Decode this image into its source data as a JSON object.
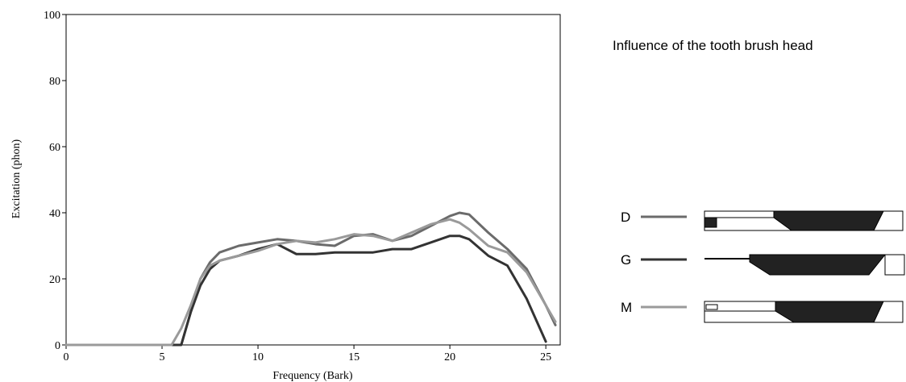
{
  "chart_data": {
    "type": "line",
    "title": "Influence of the tooth brush head",
    "x_label": "Frequency (Bark)",
    "y_label": "Excitation (phon)",
    "x": [
      0,
      5.5,
      6,
      6.5,
      7,
      7.5,
      8,
      9,
      10,
      11,
      12,
      13,
      14,
      15,
      16,
      17,
      18,
      19,
      20,
      20.5,
      21,
      22,
      23,
      24,
      25,
      25.5
    ],
    "series": [
      {
        "name": "D",
        "color": "#6b6b6b",
        "values": [
          0,
          0,
          0,
          10,
          20,
          25,
          28,
          30,
          31,
          32,
          31.5,
          30.5,
          30,
          33,
          33.5,
          31.5,
          33,
          36,
          39,
          40,
          39.5,
          34,
          29,
          23,
          12,
          6
        ]
      },
      {
        "name": "G",
        "color": "#333333",
        "values": [
          0,
          0,
          0,
          10,
          18,
          23,
          25.5,
          27,
          29,
          30.5,
          27.5,
          27.5,
          28,
          28,
          28,
          29,
          29,
          31,
          33,
          33,
          32,
          27,
          24,
          14,
          1,
          null
        ]
      },
      {
        "name": "M",
        "color": "#9a9a9a",
        "values": [
          0,
          0,
          5,
          12,
          20,
          24,
          25.5,
          27,
          28.5,
          30.5,
          31.5,
          31,
          32,
          33.5,
          33,
          31.5,
          34,
          36.5,
          38,
          37,
          35,
          30,
          28,
          22,
          12,
          7
        ]
      }
    ],
    "xlim": [
      0,
      25.75
    ],
    "xticks": [
      0,
      5,
      10,
      15,
      20,
      25
    ],
    "ylim": [
      0,
      100
    ],
    "yticks": [
      0,
      20,
      40,
      60,
      80,
      100
    ],
    "grid": false
  }
}
